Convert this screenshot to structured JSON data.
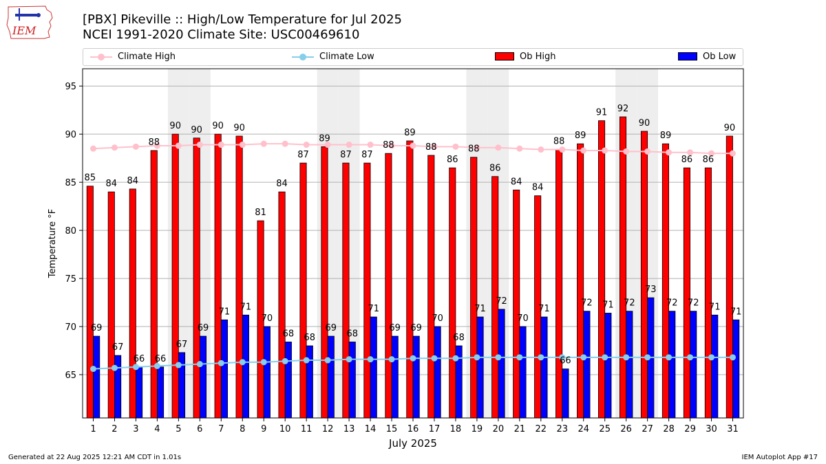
{
  "header": {
    "title_line1": "[PBX] Pikeville :: High/Low Temperature for Jul 2025",
    "title_line2": "NCEI 1991-2020 Climate Site: USC00469610",
    "logo_text": "IEM"
  },
  "legend": {
    "climate_high": "Climate High",
    "climate_low": "Climate Low",
    "ob_high": "Ob High",
    "ob_low": "Ob Low"
  },
  "colors": {
    "ob_high": "#ff0000",
    "ob_low": "#0000ff",
    "climate_high": "#ffc0cb",
    "climate_low": "#87ceeb",
    "weekend_shade": "#eeeeee",
    "grid": "#b0b0b0"
  },
  "chart_data": {
    "type": "bar",
    "title": "[PBX] Pikeville :: High/Low Temperature for Jul 2025",
    "subtitle": "NCEI 1991-2020 Climate Site: USC00469610",
    "xlabel": "July 2025",
    "ylabel": "Temperature °F",
    "ylim": [
      60.5,
      96.8
    ],
    "yticks": [
      65,
      70,
      75,
      80,
      85,
      90,
      95
    ],
    "categories": [
      1,
      2,
      3,
      4,
      5,
      6,
      7,
      8,
      9,
      10,
      11,
      12,
      13,
      14,
      15,
      16,
      17,
      18,
      19,
      20,
      21,
      22,
      23,
      24,
      25,
      26,
      27,
      28,
      29,
      30,
      31
    ],
    "shaded_days": [
      5,
      6,
      12,
      13,
      19,
      20,
      26,
      27
    ],
    "grid": true,
    "legend_position": "top",
    "series": [
      {
        "name": "Ob High",
        "kind": "bar",
        "values": [
          84.6,
          84,
          84.3,
          88.3,
          90,
          89.6,
          90,
          89.8,
          81,
          84,
          87,
          88.7,
          87,
          87,
          88,
          89.3,
          87.8,
          86.5,
          87.6,
          85.6,
          84.2,
          83.6,
          88.4,
          89,
          91.4,
          91.8,
          90.3,
          89,
          86.5,
          86.5,
          89.8
        ],
        "labels": [
          "85",
          "84",
          "84",
          "88",
          "90",
          "90",
          "90",
          "90",
          "81",
          "84",
          "87",
          "89",
          "87",
          "87",
          "88",
          "89",
          "88",
          "86",
          "88",
          "86",
          "84",
          "84",
          "88",
          "89",
          "91",
          "92",
          "90",
          "89",
          "86",
          "86",
          "90"
        ]
      },
      {
        "name": "Ob Low",
        "kind": "bar",
        "values": [
          69,
          67,
          65.8,
          65.8,
          67.3,
          69,
          70.7,
          71.2,
          70,
          68.4,
          68,
          69,
          68.4,
          71,
          69,
          69,
          70,
          68,
          71,
          71.8,
          70,
          71,
          65.6,
          71.6,
          71.4,
          71.6,
          73,
          71.6,
          71.6,
          71.2,
          70.7
        ],
        "labels": [
          "69",
          "67",
          "66",
          "66",
          "67",
          "69",
          "71",
          "71",
          "70",
          "68",
          "68",
          "69",
          "68",
          "71",
          "69",
          "69",
          "70",
          "68",
          "71",
          "72",
          "70",
          "71",
          "66",
          "72",
          "71",
          "72",
          "73",
          "72",
          "72",
          "71",
          "71"
        ]
      },
      {
        "name": "Climate High",
        "kind": "line",
        "values": [
          88.5,
          88.6,
          88.7,
          88.8,
          88.8,
          88.9,
          88.9,
          88.9,
          89,
          89,
          88.9,
          88.9,
          88.9,
          88.9,
          88.8,
          88.8,
          88.7,
          88.7,
          88.6,
          88.6,
          88.5,
          88.4,
          88.4,
          88.3,
          88.3,
          88.2,
          88.2,
          88.1,
          88.1,
          88,
          88
        ]
      },
      {
        "name": "Climate Low",
        "kind": "line",
        "values": [
          65.6,
          65.7,
          65.8,
          65.9,
          66,
          66.1,
          66.2,
          66.3,
          66.3,
          66.4,
          66.5,
          66.5,
          66.6,
          66.6,
          66.6,
          66.7,
          66.7,
          66.7,
          66.8,
          66.8,
          66.8,
          66.8,
          66.8,
          66.8,
          66.8,
          66.8,
          66.8,
          66.8,
          66.8,
          66.8,
          66.8
        ]
      }
    ]
  },
  "footer": {
    "generated": "Generated at 22 Aug 2025 12:21 AM CDT in 1.01s",
    "app": "IEM Autoplot App #17"
  }
}
